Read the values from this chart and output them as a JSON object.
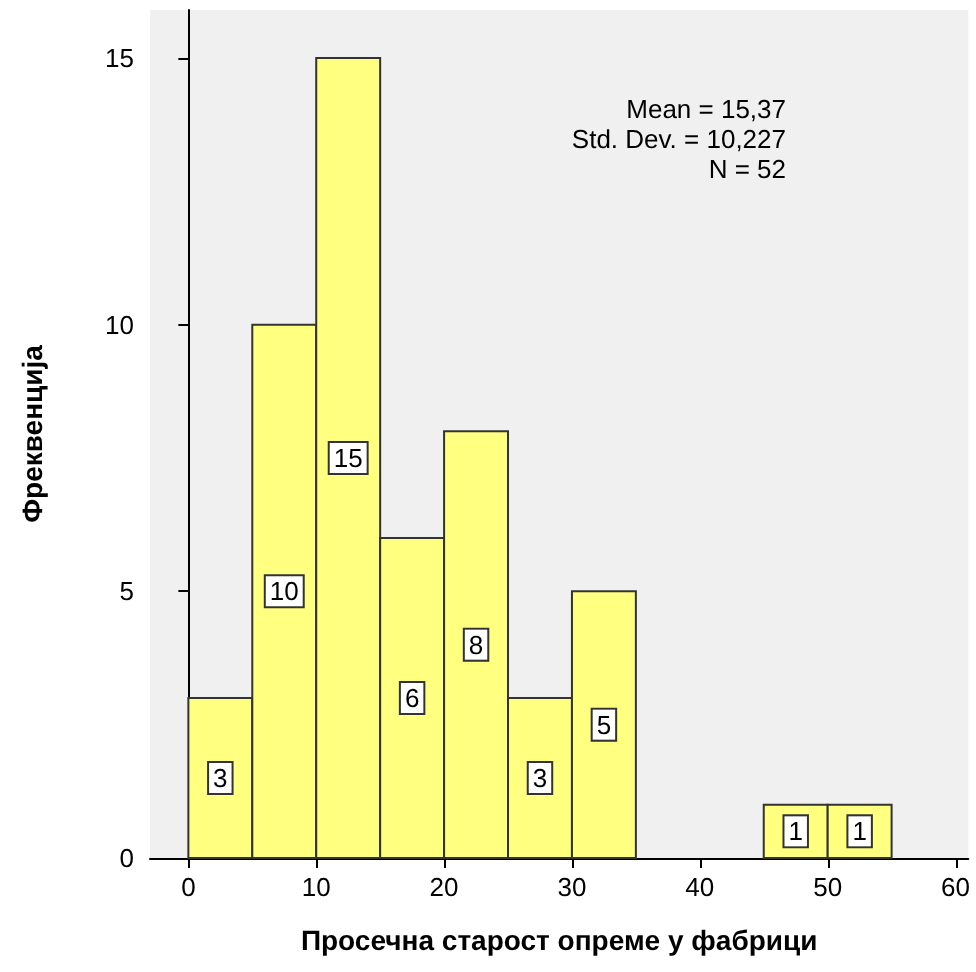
{
  "chart_data": {
    "type": "histogram",
    "xlabel": "Просечна старост опреме у фабрици",
    "ylabel": "Фреквенција",
    "bins": [
      0,
      5,
      10,
      15,
      20,
      25,
      30,
      35,
      40,
      45,
      50,
      55
    ],
    "values": [
      3,
      10,
      15,
      6,
      8,
      3,
      5,
      0,
      0,
      1,
      1
    ],
    "value_labels": [
      "3",
      "10",
      "15",
      "6",
      "8",
      "3",
      "5",
      null,
      null,
      "1",
      "1"
    ],
    "color": "#ffff80",
    "xlim": [
      -3,
      61
    ],
    "xticks": [
      0,
      10,
      20,
      30,
      40,
      50,
      60
    ],
    "ylim": [
      0,
      15.9
    ],
    "yticks": [
      0,
      5,
      10,
      15
    ],
    "annotations": [
      "Mean = 15,37",
      "Std. Dev. = 10,227",
      "N = 52"
    ]
  }
}
